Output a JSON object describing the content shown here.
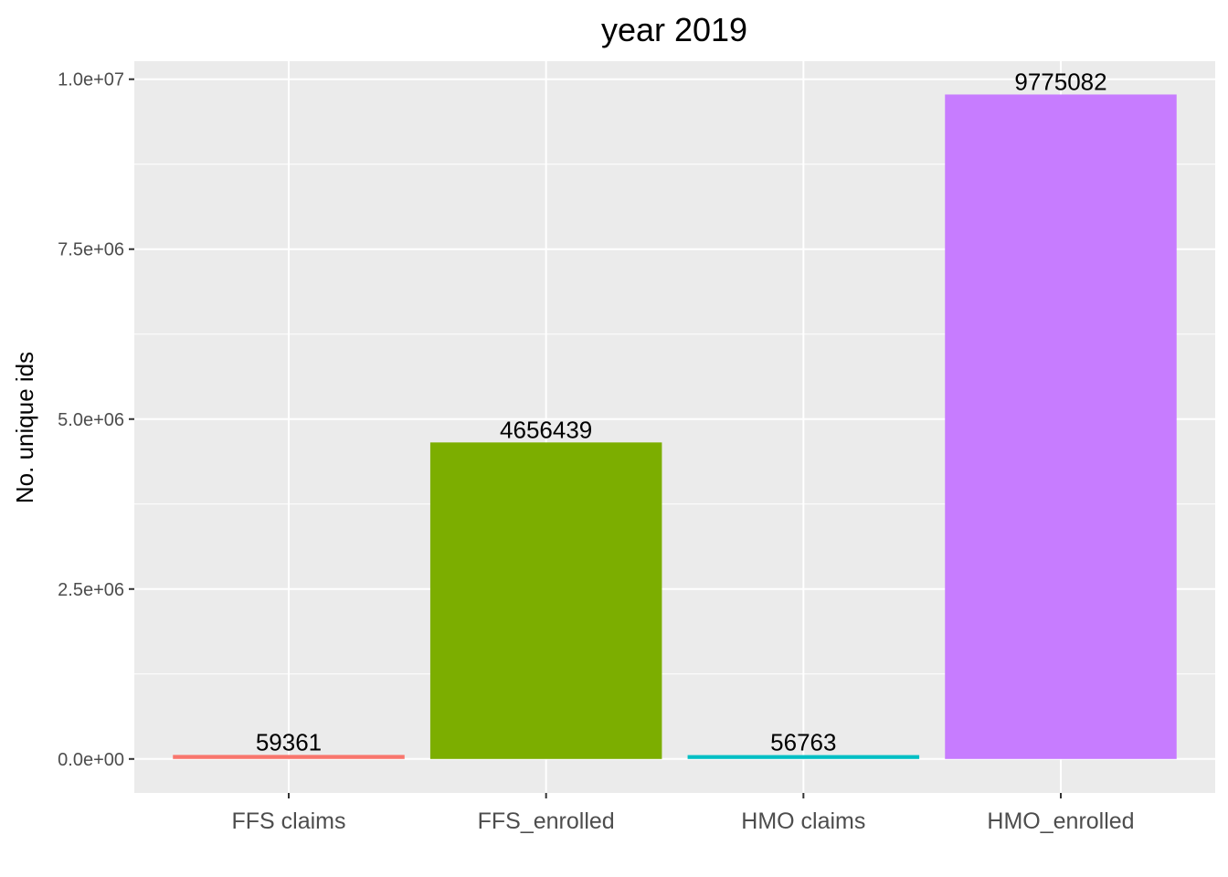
{
  "chart_data": {
    "type": "bar",
    "title": "year 2019",
    "xlabel": "",
    "ylabel": "No. unique ids",
    "categories": [
      "FFS claims",
      "FFS_enrolled",
      "HMO claims",
      "HMO_enrolled"
    ],
    "values": [
      59361,
      4656439,
      56763,
      9775082
    ],
    "data_labels": [
      "59361",
      "4656439",
      "56763",
      "9775082"
    ],
    "colors": [
      "#F8766D",
      "#7CAE00",
      "#00BFC4",
      "#C77CFF"
    ],
    "ylim": [
      -500000,
      10265000
    ],
    "yticks": [
      0,
      2500000,
      5000000,
      7500000,
      10000000
    ],
    "ytick_labels": [
      "0.0e+00",
      "2.5e+06",
      "5.0e+06",
      "7.5e+06",
      "1.0e+07"
    ],
    "grid": true,
    "legend": "none",
    "panel_background": "#EBEBEB",
    "grid_color": "#FFFFFF"
  }
}
